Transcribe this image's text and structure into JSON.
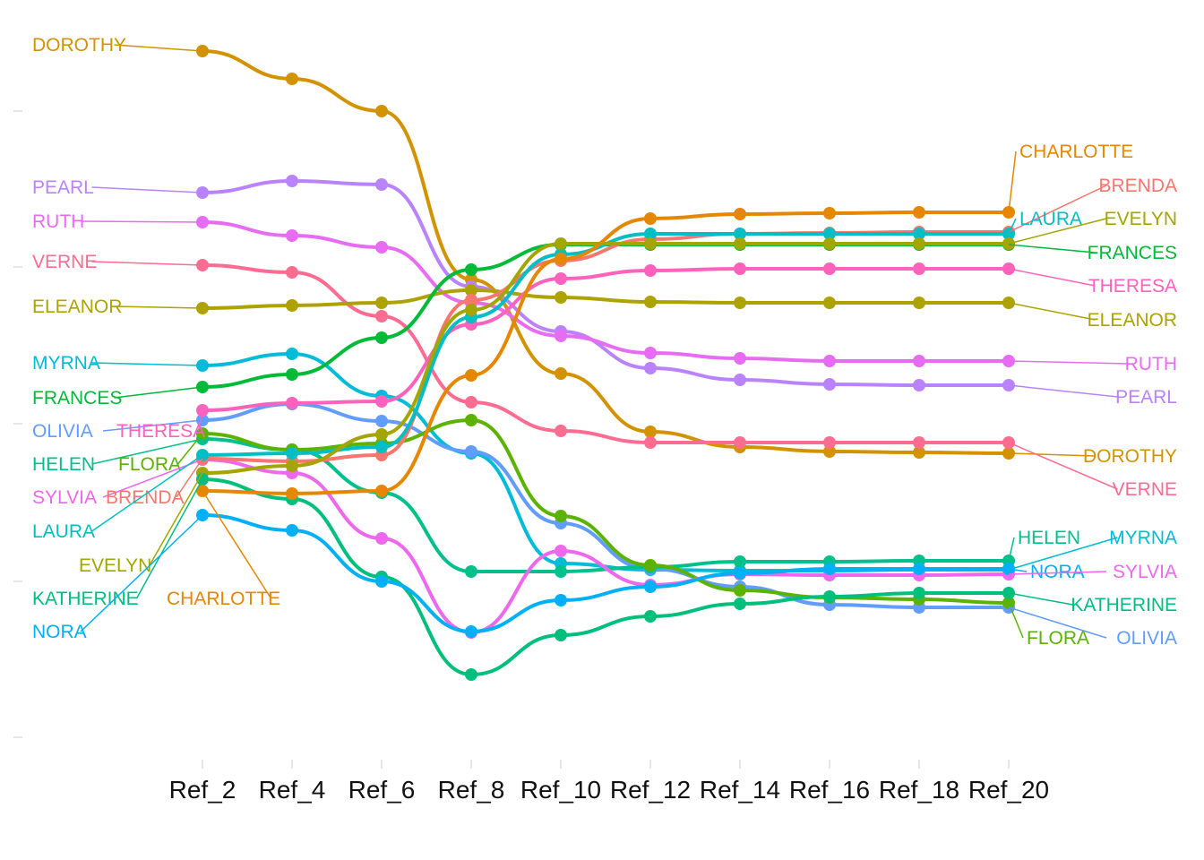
{
  "chart_data": {
    "type": "line",
    "subtype": "bump",
    "title": "",
    "xlabel": "",
    "ylabel": "",
    "x": [
      "Ref_2",
      "Ref_4",
      "Ref_6",
      "Ref_8",
      "Ref_10",
      "Ref_12",
      "Ref_14",
      "Ref_16",
      "Ref_18",
      "Ref_20"
    ],
    "y_axis": {
      "tick_labels_shown": false
    },
    "grid": false,
    "legend": "none",
    "series": [
      {
        "name": "DOROTHY",
        "color": "#D39200",
        "values": [
          798,
          767,
          731,
          543,
          438,
          373,
          356,
          351,
          350,
          349
        ]
      },
      {
        "name": "PEARL",
        "color": "#B983FF",
        "values": [
          640,
          653,
          649,
          535,
          485,
          444,
          431,
          426,
          425,
          425
        ]
      },
      {
        "name": "RUTH",
        "color": "#E76BF3",
        "values": [
          607,
          592,
          579,
          517,
          480,
          461,
          455,
          452,
          452,
          452
        ]
      },
      {
        "name": "VERNE",
        "color": "#FF6C91",
        "values": [
          559,
          551,
          502,
          406,
          374,
          361,
          361,
          361,
          361,
          361
        ]
      },
      {
        "name": "ELEANOR",
        "color": "#ADA200",
        "values": [
          511,
          514,
          517,
          531,
          523,
          518,
          517,
          517,
          517,
          517
        ]
      },
      {
        "name": "MYRNA",
        "color": "#00BCD8",
        "values": [
          447,
          460,
          413,
          349,
          226,
          219,
          218,
          218,
          219,
          219
        ]
      },
      {
        "name": "FRANCES",
        "color": "#00BA38",
        "values": [
          423,
          437,
          478,
          554,
          582,
          582,
          582,
          582,
          582,
          582
        ]
      },
      {
        "name": "OLIVIA",
        "color": "#619CFF",
        "values": [
          386,
          404,
          385,
          351,
          271,
          220,
          200,
          180,
          177,
          177
        ]
      },
      {
        "name": "THERESA",
        "color": "#FF62BC",
        "values": [
          397,
          405,
          407,
          493,
          544,
          553,
          555,
          555,
          555,
          555
        ]
      },
      {
        "name": "HELEN",
        "color": "#00C08B",
        "values": [
          365,
          353,
          305,
          217,
          217,
          222,
          228,
          228,
          229,
          229
        ]
      },
      {
        "name": "FLORA",
        "color": "#5BB300",
        "values": [
          371,
          353,
          360,
          386,
          279,
          224,
          196,
          188,
          186,
          182
        ]
      },
      {
        "name": "SYLVIA",
        "color": "#ED68ED",
        "values": [
          342,
          327,
          254,
          149,
          240,
          202,
          214,
          213,
          213,
          214
        ]
      },
      {
        "name": "BRENDA",
        "color": "#F8766D",
        "values": [
          343,
          340,
          347,
          520,
          564,
          588,
          594,
          595,
          596,
          596
        ]
      },
      {
        "name": "LAURA",
        "color": "#00BFC4",
        "values": [
          347,
          349,
          356,
          501,
          571,
          594,
          594,
          594,
          594,
          594
        ]
      },
      {
        "name": "EVELYN",
        "color": "#A3A500",
        "values": [
          327,
          335,
          370,
          509,
          583,
          583,
          583,
          583,
          583,
          583
        ]
      },
      {
        "name": "KATHERINE",
        "color": "#00BF7D",
        "values": [
          320,
          298,
          211,
          102,
          146,
          167,
          181,
          189,
          193,
          193
        ]
      },
      {
        "name": "CHARLOTTE",
        "color": "#E58700",
        "values": [
          307,
          304,
          307,
          436,
          566,
          611,
          616,
          617,
          618,
          618
        ]
      },
      {
        "name": "NORA",
        "color": "#00B0F6",
        "values": [
          280,
          263,
          206,
          150,
          185,
          200,
          215,
          220,
          220,
          220
        ]
      }
    ],
    "left_labels": [
      "DOROTHY",
      "PEARL",
      "RUTH",
      "VERNE",
      "ELEANOR",
      "MYRNA",
      "FRANCES",
      "OLIVIA",
      "THERESA",
      "HELEN",
      "FLORA",
      "SYLVIA",
      "BRENDA",
      "LAURA",
      "EVELYN",
      "KATHERINE",
      "CHARLOTTE",
      "NORA"
    ],
    "right_labels": [
      "CHARLOTTE",
      "BRENDA",
      "LAURA",
      "EVELYN",
      "FRANCES",
      "THERESA",
      "ELEANOR",
      "RUTH",
      "PEARL",
      "DOROTHY",
      "VERNE",
      "HELEN",
      "MYRNA",
      "NORA",
      "SYLVIA",
      "KATHERINE",
      "FLORA",
      "OLIVIA"
    ]
  }
}
